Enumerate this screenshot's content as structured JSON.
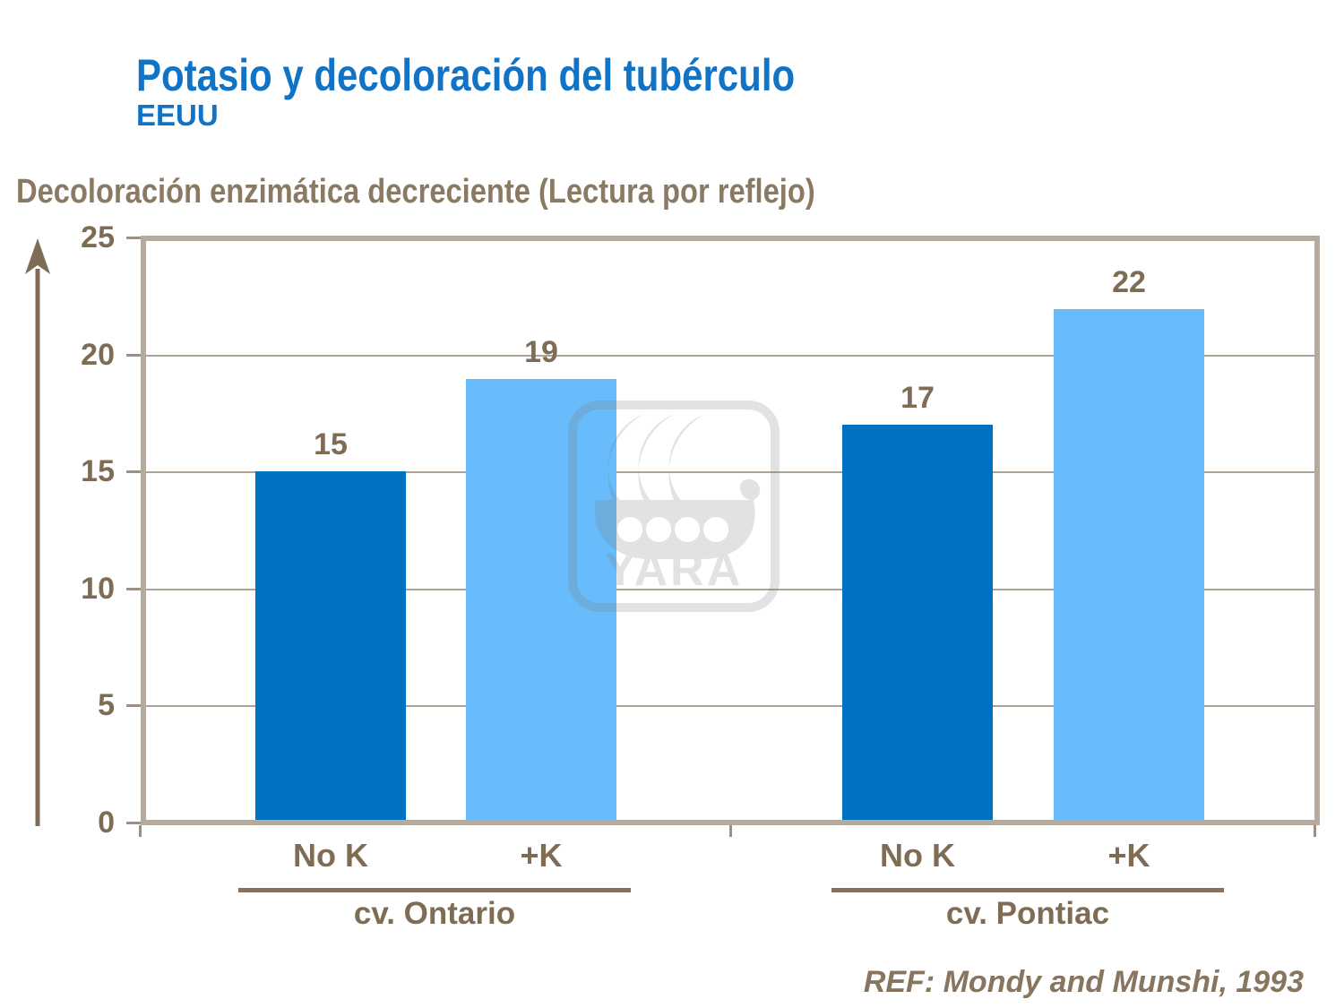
{
  "header": {
    "title": "Potasio y decoloración del tubérculo",
    "subtitle": "EEUU"
  },
  "chart_data": {
    "type": "bar",
    "title": "Potasio y decoloración del tubérculo (EEUU)",
    "axis_title": "Decoloración enzimática decreciente (Lectura por reflejo)",
    "ylabel": "",
    "xlabel": "",
    "ylim": [
      0,
      25
    ],
    "yticks": [
      0,
      5,
      10,
      15,
      20,
      25
    ],
    "grid": true,
    "legend_position": "none",
    "groups": [
      {
        "label": "cv. Ontario",
        "bars": [
          {
            "category": "No K",
            "value": 15,
            "series": "No K"
          },
          {
            "category": "+K",
            "value": 19,
            "series": "+K"
          }
        ]
      },
      {
        "label": "cv. Pontiac",
        "bars": [
          {
            "category": "No K",
            "value": 17,
            "series": "No K"
          },
          {
            "category": "+K",
            "value": 22,
            "series": "+K"
          }
        ]
      }
    ],
    "series_colors": {
      "No K": "#0072C2",
      "+K": "#68BCFB"
    }
  },
  "watermark": {
    "label": "YARA"
  },
  "footer": {
    "reference": "REF: Mondy and Munshi, 1993"
  },
  "colors": {
    "title_blue": "#1173C5",
    "bar_dark_blue": "#0072C2",
    "bar_light_blue": "#68BCFB",
    "text_brown": "#7E6C55",
    "heading_brown": "#8A7963",
    "gridline": "#ADA294",
    "plot_border": "#B5AA9C",
    "watermark_gray": "#7D7D7D"
  }
}
